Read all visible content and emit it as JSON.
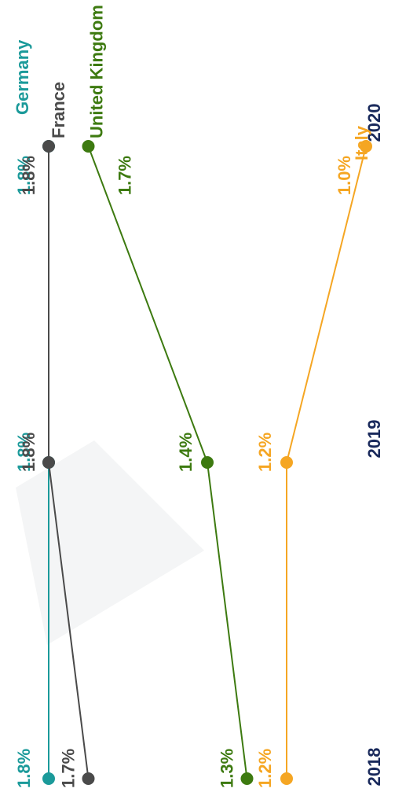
{
  "chart_data": {
    "type": "line",
    "categories": [
      "2018",
      "2019",
      "2020"
    ],
    "ylim": [
      1.0,
      1.8
    ],
    "series": [
      {
        "name": "Germany",
        "color": "#1b9a9a",
        "values": [
          1.8,
          1.8,
          1.8
        ],
        "value_labels": [
          "1.8%",
          "1.8%",
          "1.8%"
        ]
      },
      {
        "name": "France",
        "color": "#4a4a4a",
        "values": [
          1.7,
          1.8,
          1.8
        ],
        "value_labels": [
          "1.7%",
          "1.8%",
          "1.8%"
        ]
      },
      {
        "name": "United Kingdom",
        "color": "#3d7a10",
        "values": [
          1.3,
          1.4,
          1.7
        ],
        "value_labels": [
          "1.3%",
          "1.4%",
          "1.7%"
        ]
      },
      {
        "name": "Italy",
        "color": "#f5a623",
        "values": [
          1.2,
          1.2,
          1.0
        ],
        "value_labels": [
          "1.2%",
          "1.2%",
          "1.0%"
        ]
      }
    ]
  }
}
